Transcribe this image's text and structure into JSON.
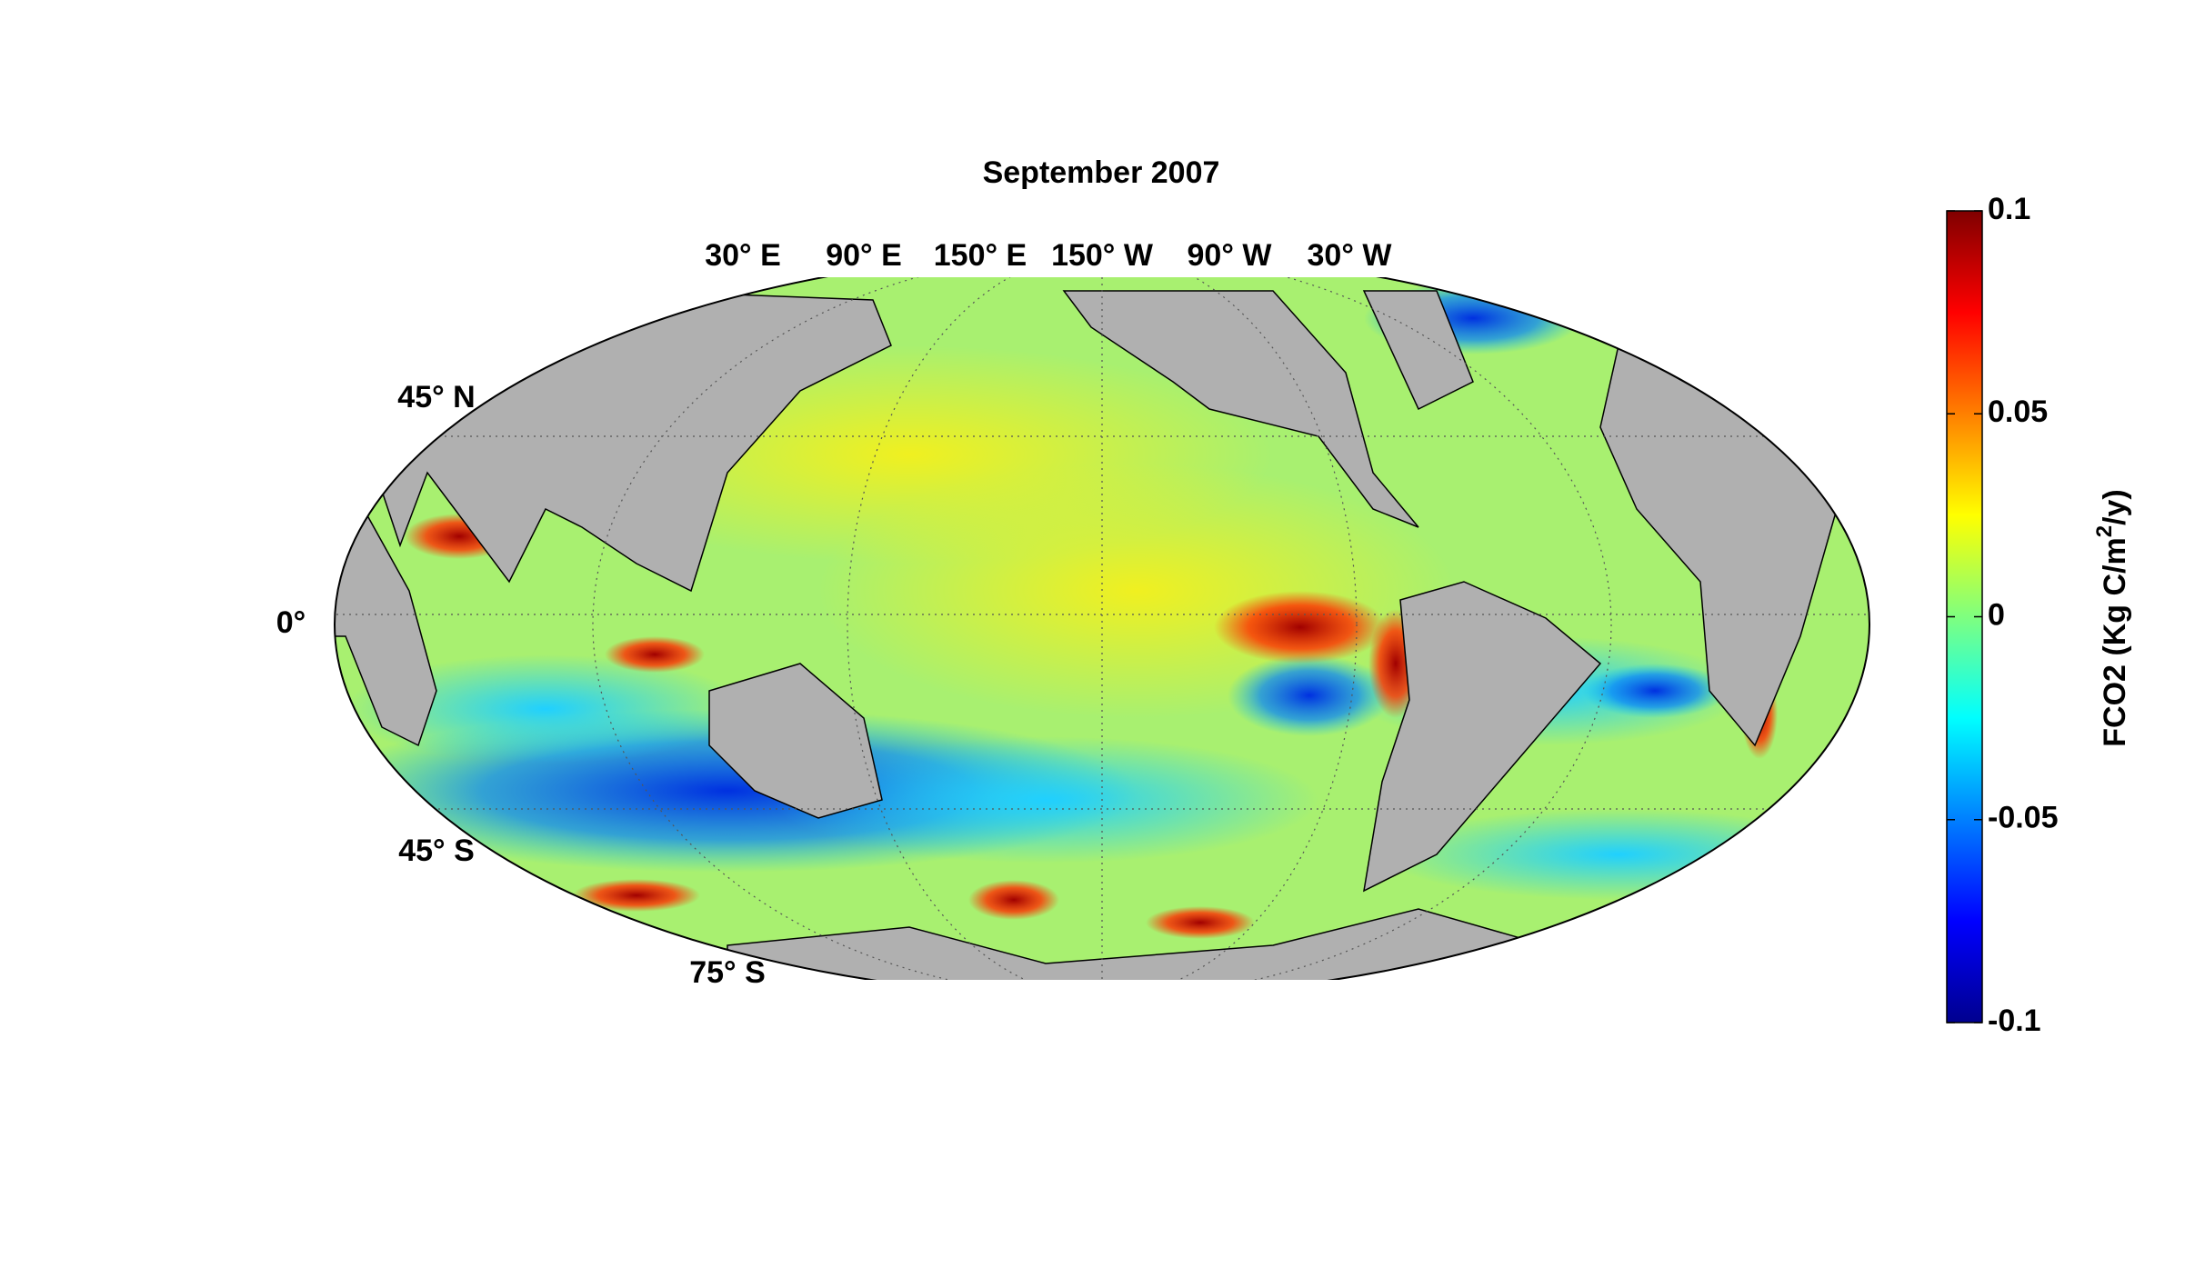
{
  "title": "September 2007",
  "lon_labels": [
    "30° E",
    "90° E",
    "150° E",
    "150° W",
    "90° W",
    "30° W"
  ],
  "lat_labels": [
    "45° N",
    "0°",
    "45° S",
    "75° S"
  ],
  "colorbar": {
    "lim": [
      -0.1,
      0.1
    ],
    "ticks": [
      0.1,
      0.05,
      0,
      -0.05,
      -0.1
    ],
    "label": {
      "text": "FCO2 (Kg C/m",
      "sup": "2",
      "end": "/y)"
    }
  }
}
